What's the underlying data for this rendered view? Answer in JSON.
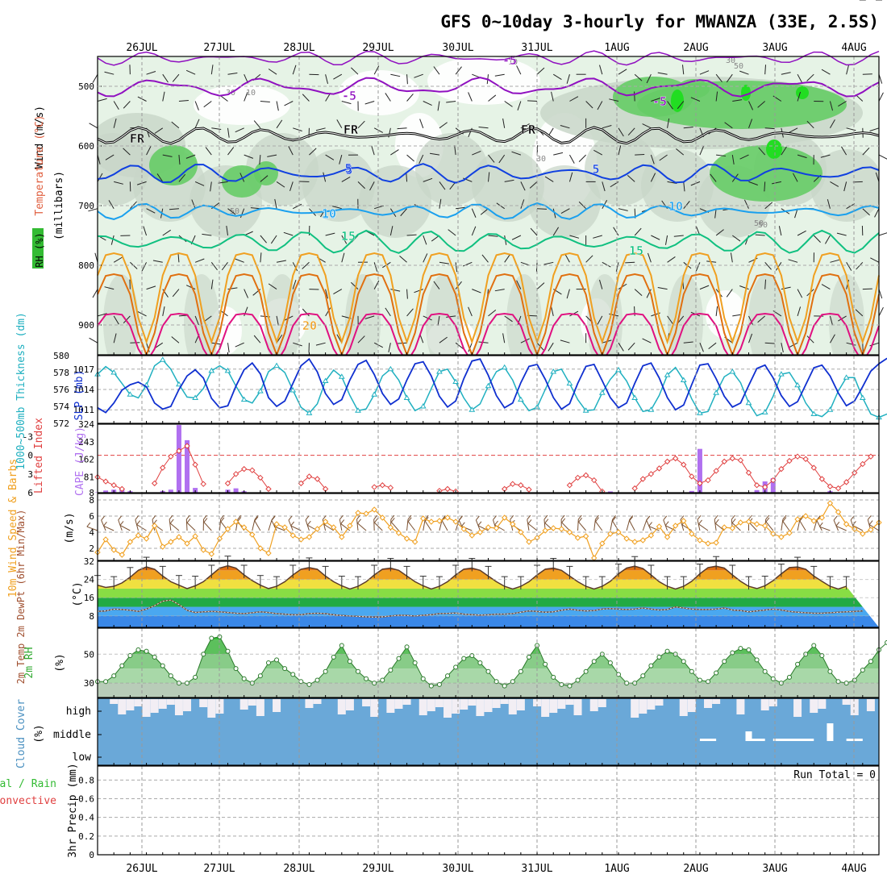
{
  "title": "GFS 0~10day 3-hourly for MWANZA (33E, 2.5S)",
  "dates": [
    "26JUL",
    "27JUL",
    "28JUL",
    "29JUL",
    "30JUL",
    "31JUL",
    "1AUG",
    "2AUG",
    "3AUG",
    "4AUG"
  ],
  "colors": {
    "rh_light": "#e6f3e6",
    "rh_grey": "#c8d6c8",
    "rh_green": "#66cc66",
    "rh_bright": "#22dd22",
    "temp_m5": "#9010c0",
    "temp_fr": "#000000",
    "temp_5": "#1040e0",
    "temp_10": "#1aa0ee",
    "temp_15": "#10c080",
    "temp_20": "#f0a020",
    "temp_25": "#e07010",
    "temp_30": "#e01080",
    "thickness": "#20b0c0",
    "slp": "#1030d0",
    "cape": "#b070f0",
    "lifted": "#e04040",
    "wind10m": "#f0a020",
    "cloud": "#6aa8d8",
    "cloud_gap": "#f2eef4",
    "rh2m": "#44bb44"
  },
  "panels": {
    "upper": {
      "ylabel_wind": "Wind (m/s)",
      "ylabel_temp": "Temperature (°C)",
      "ylabel_rh": "RH (%)",
      "ylabel_units": "(millibars)",
      "contour_labels": [
        "-5",
        "FR",
        "5",
        "10",
        "15",
        "20",
        "-5",
        "FR",
        "5",
        "10",
        "15",
        "FR",
        "5",
        "10",
        "-5"
      ],
      "rh_labels": [
        "50",
        "30",
        "10",
        "10",
        "30",
        "50",
        "50",
        "30",
        "50"
      ]
    },
    "thickness": {
      "ylabel": "1000~500mb Thickness (dm)",
      "ylabel2": "SLP (mb)"
    },
    "cape": {
      "ylabel": "Lifted Index",
      "ylabel2": "CAPE (J/kg)"
    },
    "wind": {
      "ylabel": "10m Wind Speed & Barbs",
      "unit": "(m/s)"
    },
    "temp": {
      "ylabel": "2m Temp 2m DewPt (6hr Min/Max)",
      "unit": "(°C)"
    },
    "rh": {
      "ylabel": "2m RH",
      "unit": "(%)"
    },
    "cloud": {
      "ylabel": "Cloud Cover",
      "unit": "(%)",
      "levels": [
        "high",
        "middle",
        "low"
      ]
    },
    "precip": {
      "ylabel": "Total / Rain",
      "ylabel2": "Convective",
      "ylabel3": "3hr Precip (mm)",
      "run_total": "Run Total = 0"
    }
  },
  "chart_data": [
    {
      "type": "line",
      "panel": "upper-air",
      "y_axis_label": "millibars",
      "yticks": [
        500,
        600,
        700,
        800,
        900
      ],
      "ylim": [
        450,
        950
      ],
      "grid": true
    },
    {
      "type": "line",
      "panel": "thickness-slp",
      "yticks_left": [
        572,
        574,
        576,
        578,
        580
      ],
      "ylim_left": [
        572,
        580
      ],
      "yticks_right": [
        1011,
        1014,
        1017
      ],
      "ylim_right": [
        1009,
        1019
      ],
      "series": [
        {
          "name": "1000~500mb Thickness (dm)",
          "values": [
            577.8,
            578.7,
            578.0,
            576.7,
            575.4,
            575.0,
            576.5,
            578.8,
            579.5,
            578.4,
            576.6,
            575.1,
            575.0,
            576.1,
            578.2,
            578.8,
            578.2,
            576.4,
            574.8,
            574.4,
            575.8,
            578.1,
            578.8,
            578.0,
            575.9,
            573.9,
            573.2,
            574.3,
            577.0,
            578.3,
            577.5,
            575.3,
            573.5,
            573.7,
            575.4,
            577.6,
            578.4,
            577.1,
            575.0,
            573.5,
            574.0,
            576.1,
            578.1,
            578.4,
            576.9,
            575.0,
            573.6,
            574.3,
            576.4,
            578.1,
            578.6,
            577.1,
            574.8,
            573.5,
            573.9,
            576.0,
            578.1,
            578.4,
            576.7,
            574.8,
            573.5,
            573.6,
            575.6,
            577.2,
            578.3,
            577.0,
            575.0,
            573.4,
            573.6,
            575.3,
            577.7,
            578.6,
            577.1,
            574.9,
            573.2,
            573.4,
            575.6,
            577.5,
            578.1,
            576.8,
            574.4,
            572.9,
            573.3,
            575.2,
            577.8,
            578.0,
            576.5,
            574.4,
            573.1,
            572.8,
            573.6,
            575.8,
            577.4,
            577.4,
            575.0,
            573.1,
            572.7,
            573.1
          ]
        },
        {
          "name": "SLP (mb)",
          "values": [
            1011.3,
            1010.6,
            1012.0,
            1013.9,
            1014.7,
            1015.1,
            1014.4,
            1012.0,
            1011.1,
            1011.5,
            1014.0,
            1016.0,
            1016.9,
            1015.7,
            1012.7,
            1011.3,
            1011.6,
            1014.5,
            1016.9,
            1017.9,
            1016.3,
            1012.8,
            1011.5,
            1012.3,
            1014.9,
            1017.5,
            1018.5,
            1016.6,
            1013.4,
            1011.8,
            1012.5,
            1015.4,
            1017.7,
            1018.3,
            1016.2,
            1013.4,
            1011.8,
            1012.6,
            1015.4,
            1017.8,
            1018.1,
            1016.0,
            1013.0,
            1011.4,
            1012.3,
            1015.6,
            1018.2,
            1018.5,
            1016.1,
            1013.1,
            1011.3,
            1012.0,
            1015.0,
            1017.4,
            1017.7,
            1015.5,
            1012.8,
            1011.1,
            1011.9,
            1014.9,
            1017.4,
            1017.7,
            1015.3,
            1012.8,
            1011.3,
            1012.0,
            1014.9,
            1017.5,
            1017.9,
            1015.7,
            1012.8,
            1011.0,
            1011.7,
            1014.7,
            1017.6,
            1017.8,
            1015.6,
            1013.0,
            1011.4,
            1012.0,
            1014.6,
            1017.1,
            1017.6,
            1015.7,
            1013.1,
            1011.5,
            1012.2,
            1014.7,
            1017.2,
            1017.6,
            1016.0,
            1013.5,
            1011.6,
            1012.3,
            1014.4,
            1016.7,
            1017.8,
            1018.6
          ]
        }
      ]
    },
    {
      "type": "bar",
      "panel": "cape-lifted-index",
      "yticks_left": [
        -3,
        0,
        3,
        6
      ],
      "ylim_left": [
        6,
        -5
      ],
      "yticks_right": [
        8,
        81,
        162,
        243,
        324
      ],
      "ylim_right": [
        8,
        324
      ],
      "series": [
        {
          "name": "Lifted Index",
          "values": [
            3.5,
            4.2,
            4.8,
            5.4,
            6.0,
            6.0,
            6.0,
            4.5,
            2.0,
            0.2,
            -0.7,
            -1.5,
            1.5,
            4.6,
            6.0,
            6.0,
            4.5,
            3.0,
            2.2,
            2.4,
            3.6,
            5.4,
            6.0,
            6.0,
            6.0,
            4.5,
            3.4,
            3.8,
            5.4,
            6.0,
            6.0,
            6.0,
            6.0,
            6.0,
            5.1,
            4.8,
            5.2,
            6.0,
            6.0,
            6.0,
            6.0,
            6.0,
            5.7,
            5.4,
            5.8,
            6.0,
            6.0,
            6.0,
            6.0,
            6.0,
            5.4,
            4.6,
            4.8,
            5.5,
            6.0,
            6.0,
            6.0,
            6.0,
            4.8,
            3.6,
            3.2,
            4.0,
            5.8,
            6.0,
            6.0,
            6.0,
            5.3,
            3.8,
            3.0,
            2.1,
            1.0,
            0.5,
            1.5,
            3.4,
            4.5,
            4.0,
            2.5,
            1.0,
            0.5,
            0.8,
            2.8,
            4.8,
            5.1,
            4.0,
            2.2,
            0.9,
            0.2,
            0.6,
            2.0,
            3.8,
            5.0,
            5.3,
            4.3,
            2.8,
            1.4,
            0.2
          ]
        },
        {
          "name": "CAPE (J/kg)",
          "values": [
            10,
            18,
            22,
            25,
            15,
            8,
            8,
            10,
            16,
            22,
            320,
            250,
            30,
            10,
            8,
            8,
            22,
            28,
            15,
            8,
            8,
            8,
            8,
            8,
            8,
            8,
            8,
            8,
            8,
            8,
            8,
            8,
            8,
            8,
            8,
            8,
            8,
            8,
            8,
            8,
            8,
            8,
            8,
            8,
            8,
            8,
            8,
            8,
            8,
            8,
            8,
            8,
            8,
            8,
            8,
            8,
            8,
            8,
            8,
            8,
            8,
            8,
            10,
            14,
            8,
            8,
            8,
            8,
            8,
            8,
            8,
            8,
            8,
            16,
            210,
            8,
            8,
            8,
            8,
            8,
            8,
            20,
            60,
            75,
            8,
            8,
            8,
            8,
            8,
            8,
            16,
            10,
            8,
            8,
            8,
            8,
            8,
            8
          ]
        }
      ]
    },
    {
      "type": "line",
      "panel": "10m-wind",
      "yticks": [
        2,
        4,
        6,
        8
      ],
      "ylim": [
        0.5,
        8.8
      ],
      "series": [
        {
          "name": "10m Wind Speed (m/s)",
          "values": [
            1.5,
            3.1,
            1.8,
            1.2,
            2.8,
            3.6,
            3.2,
            4.8,
            2.2,
            2.8,
            3.4,
            2.6,
            3.5,
            1.8,
            1.3,
            3.2,
            4.4,
            5.3,
            4.6,
            3.7,
            2.0,
            1.4,
            5.0,
            4.6,
            3.6,
            3.1,
            3.4,
            4.4,
            5.3,
            4.6,
            3.4,
            4.8,
            6.4,
            6.3,
            6.8,
            5.8,
            4.6,
            3.9,
            3.2,
            2.8,
            5.7,
            5.3,
            5.4,
            5.8,
            5.3,
            4.4,
            3.6,
            4.0,
            4.6,
            4.5,
            5.8,
            5.0,
            4.0,
            2.8,
            3.3,
            4.2,
            4.5,
            4.4,
            4.0,
            3.3,
            3.5,
            0.8,
            2.6,
            3.8,
            4.0,
            3.2,
            2.8,
            3.0,
            3.6,
            4.7,
            3.4,
            4.8,
            5.4,
            3.8,
            3.0,
            2.6,
            2.7,
            4.6,
            4.5,
            5.2,
            5.3,
            5.0,
            4.8,
            3.8,
            3.4,
            3.9,
            5.6,
            6.0,
            5.4,
            5.8,
            7.6,
            6.5,
            5.0,
            4.4,
            3.8,
            4.3,
            5.2
          ]
        }
      ]
    },
    {
      "type": "area",
      "panel": "2m-temp",
      "yticks": [
        8,
        16,
        24,
        32
      ],
      "ylim": [
        3,
        32
      ],
      "series": [
        {
          "name": "2m Temp (°C)",
          "values": [
            21.5,
            20.5,
            21.0,
            22.5,
            25.0,
            28.0,
            29.5,
            28.5,
            25.5,
            23.0,
            21.5,
            20.0,
            21.2,
            23.0,
            26.0,
            29.0,
            30.0,
            29.0,
            26.0,
            23.5,
            21.5,
            20.0,
            21.0,
            23.0,
            26.0,
            28.5,
            29.2,
            28.5,
            25.5,
            23.0,
            21.2,
            19.8,
            21.0,
            23.0,
            26.0,
            28.5,
            29.0,
            28.0,
            25.5,
            23.0,
            21.2,
            19.8,
            21.0,
            23.0,
            26.0,
            28.5,
            29.0,
            28.0,
            25.5,
            23.0,
            21.0,
            19.8,
            21.0,
            23.0,
            26.0,
            28.5,
            29.0,
            28.0,
            25.5,
            23.0,
            21.0,
            19.8,
            21.0,
            23.2,
            26.5,
            29.0,
            29.8,
            28.8,
            26.0,
            23.0,
            21.0,
            19.8,
            21.0,
            23.2,
            26.5,
            29.2,
            29.8,
            29.0,
            26.0,
            23.2,
            21.0,
            20.0,
            21.2,
            23.5,
            26.5,
            29.2,
            29.5,
            28.5,
            25.5,
            23.2,
            21.0,
            19.8,
            21.0
          ]
        },
        {
          "name": "2m DewPt (°C)",
          "values": [
            10.0,
            10.2,
            11.0,
            10.8,
            10.5,
            10.0,
            11.0,
            12.5,
            14.5,
            15.0,
            13.0,
            10.5,
            9.5,
            9.8,
            10.0,
            9.8,
            9.5,
            9.2,
            9.0,
            9.4,
            9.8,
            9.5,
            9.0,
            8.8,
            8.5,
            8.6,
            9.0,
            9.2,
            9.0,
            8.5,
            8.2,
            8.0,
            7.8,
            7.6,
            7.5,
            7.6,
            8.0,
            8.3,
            8.2,
            8.0,
            8.3,
            8.6,
            9.0,
            9.1,
            9.3,
            8.8,
            8.6,
            8.4,
            8.5,
            8.8,
            8.8,
            9.0,
            9.6,
            10.2,
            10.0,
            9.6,
            9.8,
            10.5,
            11.0,
            10.5,
            10.2,
            10.4,
            11.0,
            11.2,
            11.0,
            10.8,
            11.0,
            11.5,
            11.0,
            10.6,
            10.8,
            12.0,
            11.5,
            11.0,
            10.8,
            10.8,
            11.0,
            11.5,
            10.6,
            10.4,
            9.8,
            10.2,
            10.6,
            11.0,
            10.6,
            10.0,
            9.6,
            9.4,
            9.2,
            9.2,
            9.4,
            9.6,
            9.8,
            10.0,
            10.2
          ]
        }
      ]
    },
    {
      "type": "area",
      "panel": "2m-rh",
      "yticks": [
        30,
        50
      ],
      "ylim": [
        20,
        68
      ],
      "series": [
        {
          "name": "2m RH (%)",
          "values": [
            31,
            31,
            35,
            42,
            49,
            53,
            52,
            48,
            42,
            35,
            30,
            30,
            34,
            50,
            61,
            62,
            52,
            40,
            33,
            30,
            35,
            44,
            46,
            40,
            36,
            31,
            29,
            32,
            38,
            48,
            56,
            45,
            38,
            33,
            30,
            32,
            39,
            47,
            55,
            44,
            33,
            28,
            29,
            35,
            41,
            47,
            49,
            44,
            38,
            31,
            28,
            31,
            38,
            48,
            56,
            43,
            34,
            29,
            28,
            32,
            38,
            45,
            50,
            44,
            36,
            30,
            30,
            35,
            42,
            48,
            52,
            50,
            45,
            38,
            32,
            31,
            37,
            45,
            51,
            54,
            53,
            46,
            38,
            33,
            30,
            34,
            43,
            50,
            56,
            49,
            38,
            31,
            30,
            32,
            39,
            45,
            53,
            58,
            51
          ]
        }
      ]
    },
    {
      "type": "heatmap",
      "panel": "cloud-cover",
      "rows": [
        "high",
        "middle",
        "low"
      ],
      "grid": true
    },
    {
      "type": "bar",
      "panel": "3hr-precip",
      "yticks": [
        0,
        0.2,
        0.4,
        0.6,
        0.8
      ],
      "ylim": [
        0,
        0.95
      ],
      "series": [
        {
          "name": "Total / Rain",
          "values": []
        },
        {
          "name": "Convective",
          "values": []
        }
      ]
    }
  ]
}
